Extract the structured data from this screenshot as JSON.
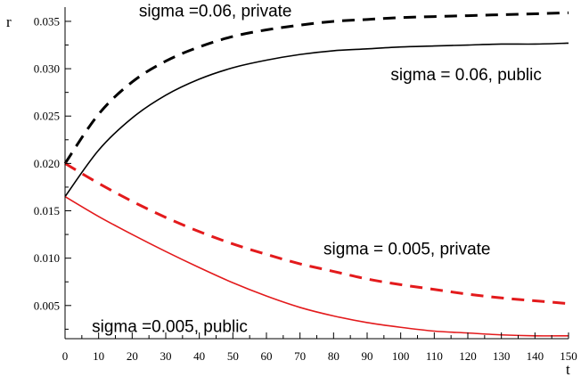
{
  "chart_data": {
    "type": "line",
    "xlabel": "t",
    "ylabel": "r",
    "xlim": [
      0,
      150
    ],
    "ylim": [
      0.0015,
      0.0365
    ],
    "x_ticks": [
      0,
      10,
      20,
      30,
      40,
      50,
      60,
      70,
      80,
      90,
      100,
      110,
      120,
      130,
      140,
      150
    ],
    "y_ticks": [
      0.005,
      0.01,
      0.015,
      0.02,
      0.025,
      0.03,
      0.035
    ],
    "x_tick_labels": [
      "0",
      "10",
      "20",
      "30",
      "40",
      "50",
      "60",
      "70",
      "80",
      "90",
      "100",
      "110",
      "120",
      "130",
      "140",
      "150"
    ],
    "y_tick_labels": [
      "0.005",
      "0.010",
      "0.015",
      "0.020",
      "0.025",
      "0.030",
      "0.035"
    ],
    "grid": false,
    "legend": "none",
    "series": [
      {
        "color": "#000000",
        "style": "dashed",
        "x": [
          0,
          10,
          20,
          30,
          40,
          50,
          60,
          70,
          80,
          90,
          100,
          110,
          120,
          130,
          140,
          150
        ],
        "y": [
          0.02,
          0.0252,
          0.0286,
          0.0308,
          0.0323,
          0.0334,
          0.0341,
          0.0346,
          0.035,
          0.0352,
          0.0354,
          0.0355,
          0.0356,
          0.0357,
          0.0358,
          0.0359
        ]
      },
      {
        "color": "#000000",
        "style": "solid",
        "x": [
          0,
          10,
          20,
          30,
          40,
          50,
          60,
          70,
          80,
          90,
          100,
          110,
          120,
          130,
          140,
          150
        ],
        "y": [
          0.0165,
          0.0214,
          0.0248,
          0.0272,
          0.0289,
          0.0301,
          0.0309,
          0.0315,
          0.0319,
          0.0321,
          0.0323,
          0.0324,
          0.0325,
          0.0326,
          0.0326,
          0.0327
        ]
      },
      {
        "color": "#e31a1c",
        "style": "dashed",
        "x": [
          0,
          10,
          20,
          30,
          40,
          50,
          60,
          70,
          80,
          90,
          100,
          110,
          120,
          130,
          140,
          150
        ],
        "y": [
          0.02,
          0.0179,
          0.016,
          0.0143,
          0.0128,
          0.0115,
          0.0104,
          0.0094,
          0.0086,
          0.0078,
          0.0072,
          0.0067,
          0.0062,
          0.0058,
          0.0055,
          0.0052
        ]
      },
      {
        "color": "#e31a1c",
        "style": "solid",
        "x": [
          0,
          10,
          20,
          30,
          40,
          50,
          60,
          70,
          80,
          90,
          100,
          110,
          120,
          130,
          140,
          150
        ],
        "y": [
          0.0165,
          0.0144,
          0.0125,
          0.0107,
          0.009,
          0.0074,
          0.006,
          0.0048,
          0.0039,
          0.0032,
          0.0027,
          0.0023,
          0.0021,
          0.0019,
          0.0018,
          0.0018
        ]
      }
    ],
    "annotations": [
      {
        "text": "sigma =0.06, private",
        "x": 22,
        "y": 0.0355
      },
      {
        "text": "sigma = 0.06, public",
        "x": 97,
        "y": 0.0288
      },
      {
        "text": "sigma = 0.005, private",
        "x": 77,
        "y": 0.0104
      },
      {
        "text": "sigma =0.005, public",
        "x": 8,
        "y": 0.0022
      }
    ]
  }
}
